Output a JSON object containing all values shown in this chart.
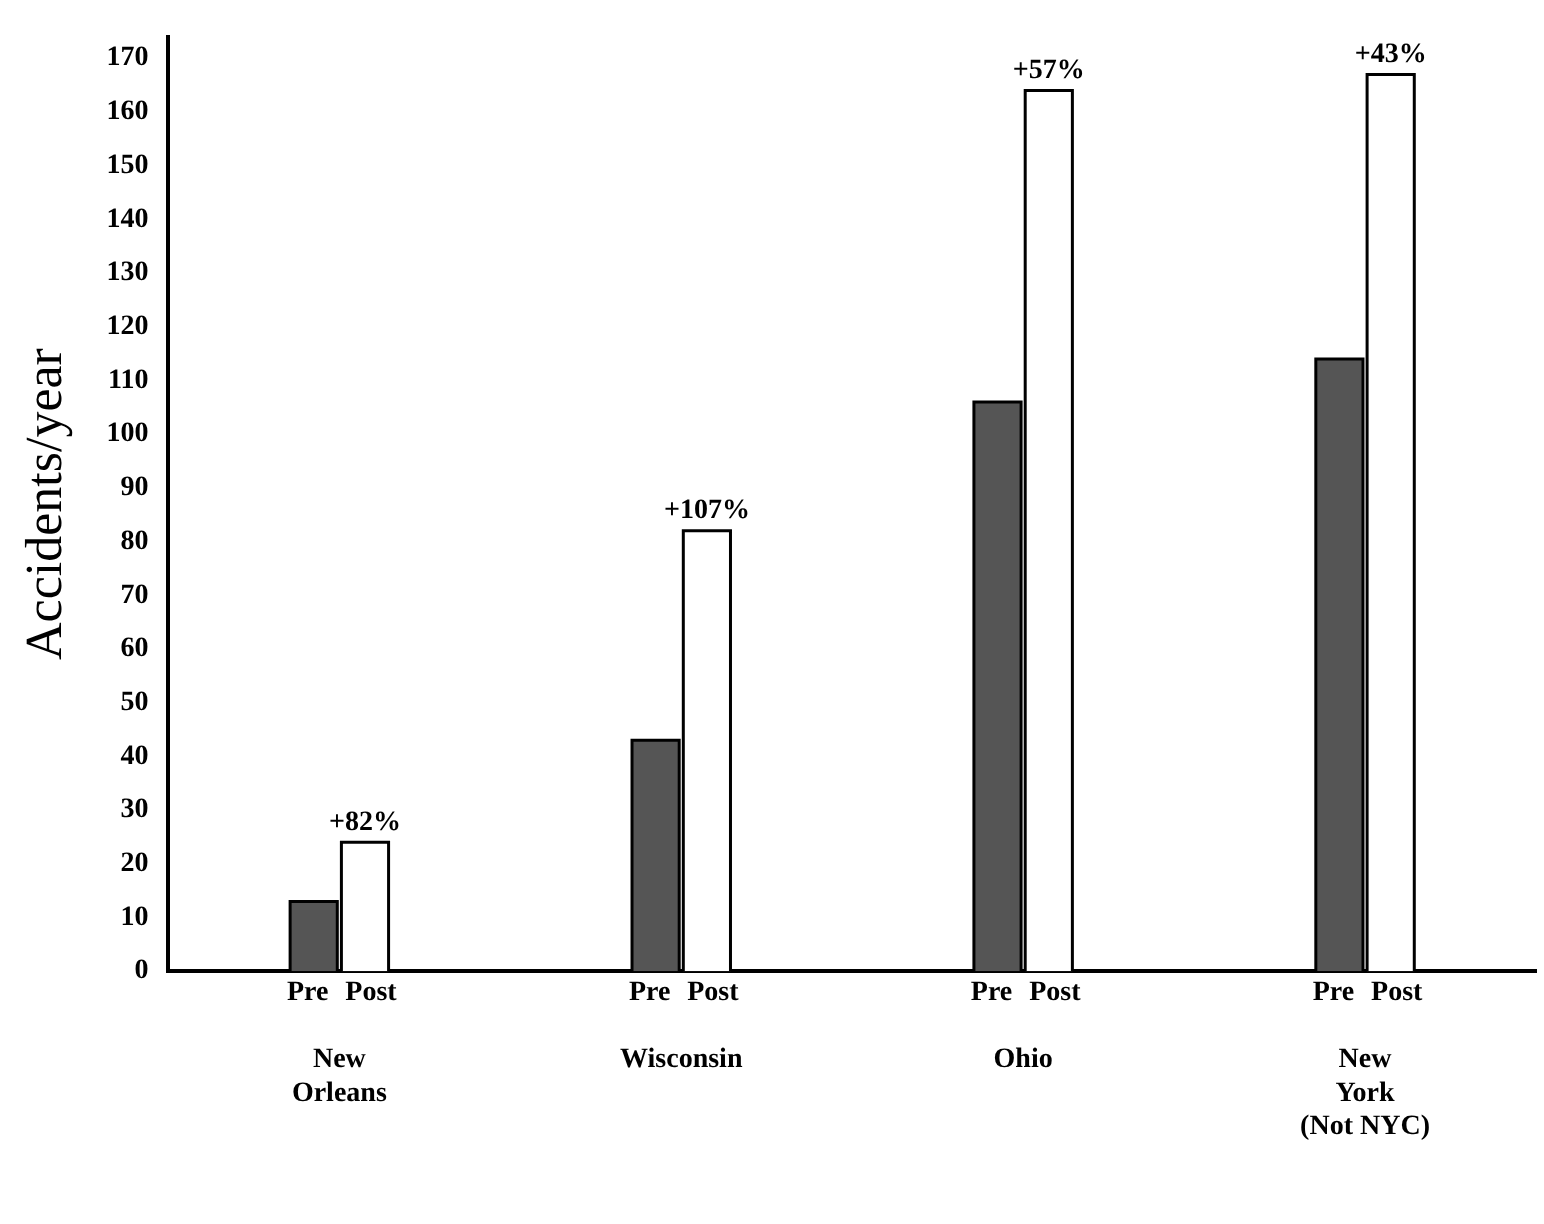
{
  "chart_data": {
    "type": "bar",
    "ylabel": "Accidents/year",
    "categories": [
      "New\nOrleans",
      "Wisconsin",
      "Ohio",
      "New\nYork\n(Not NYC)"
    ],
    "series": [
      {
        "name": "Pre",
        "color": "#555555",
        "values": [
          13,
          43,
          106,
          114
        ]
      },
      {
        "name": "Post",
        "color": "#ffffff",
        "values": [
          24,
          82,
          164,
          167
        ]
      }
    ],
    "ylim": [
      0,
      174
    ],
    "yticks": [
      0,
      10,
      20,
      30,
      40,
      50,
      60,
      70,
      80,
      90,
      100,
      110,
      120,
      130,
      140,
      150,
      160,
      170
    ],
    "grid": false,
    "legend": "bottom",
    "annotations": [
      {
        "text": "+82%",
        "x": "New\nOrleans",
        "y": 24
      },
      {
        "text": "+107%",
        "x": "Wisconsin",
        "y": 82
      },
      {
        "text": "+57%",
        "x": "Ohio",
        "y": 164
      },
      {
        "text": "+43%",
        "x": "New\nYork\n(Not NYC)",
        "y": 167
      }
    ]
  }
}
